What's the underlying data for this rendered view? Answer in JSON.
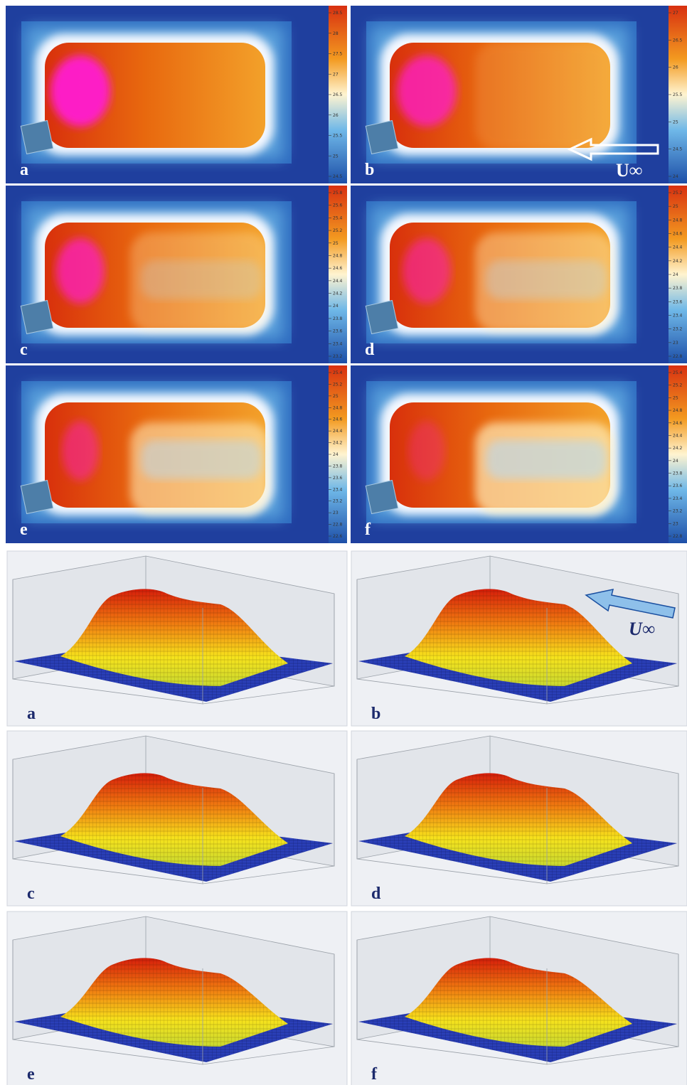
{
  "thermal_panels": [
    {
      "label": "a",
      "colorbar_ticks": [
        28.5,
        28,
        27.5,
        27,
        26.5,
        26,
        25.5,
        25,
        24.5
      ]
    },
    {
      "label": "b",
      "colorbar_ticks": [
        27,
        26.5,
        26,
        25.5,
        25,
        24.5,
        24
      ]
    },
    {
      "label": "c",
      "colorbar_ticks": [
        25.8,
        25.6,
        25.4,
        25.2,
        25,
        24.8,
        24.6,
        24.4,
        24.2,
        24,
        23.8,
        23.6,
        23.4,
        23.2
      ]
    },
    {
      "label": "d",
      "colorbar_ticks": [
        25.2,
        25,
        24.8,
        24.6,
        24.4,
        24.2,
        24,
        23.8,
        23.6,
        23.4,
        23.2,
        23,
        22.8
      ]
    },
    {
      "label": "e",
      "colorbar_ticks": [
        25.4,
        25.2,
        25,
        24.8,
        24.6,
        24.4,
        24.2,
        24,
        23.8,
        23.6,
        23.4,
        23.2,
        23,
        22.8,
        22.6
      ]
    },
    {
      "label": "f",
      "colorbar_ticks": [
        25.4,
        25.2,
        25,
        24.8,
        24.6,
        24.4,
        24.2,
        24,
        23.8,
        23.6,
        23.4,
        23.2,
        23,
        22.8
      ]
    }
  ],
  "surface_panels": [
    {
      "label": "a"
    },
    {
      "label": "b"
    },
    {
      "label": "c"
    },
    {
      "label": "d"
    },
    {
      "label": "e"
    },
    {
      "label": "f"
    }
  ],
  "flow_label": "U∞"
}
